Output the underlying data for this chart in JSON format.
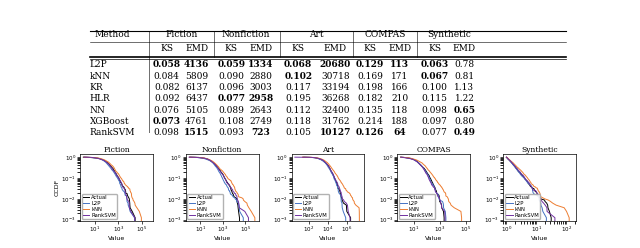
{
  "table": {
    "methods": [
      "L2P",
      "kNN",
      "KR",
      "HLR",
      "NN",
      "XGBoost",
      "RankSVM"
    ],
    "datasets": [
      "Fiction",
      "Nonfiction",
      "Art",
      "COMPAS",
      "Synthetic"
    ],
    "data": [
      [
        "0.058",
        "4136",
        "0.059",
        "1334",
        "0.068",
        "20680",
        "0.129",
        "113",
        "0.063",
        "0.78"
      ],
      [
        "0.084",
        "5809",
        "0.090",
        "2880",
        "0.102",
        "30718",
        "0.169",
        "171",
        "0.067",
        "0.81"
      ],
      [
        "0.082",
        "6137",
        "0.096",
        "3003",
        "0.117",
        "33194",
        "0.198",
        "166",
        "0.100",
        "1.13"
      ],
      [
        "0.092",
        "6437",
        "0.077",
        "2958",
        "0.195",
        "36268",
        "0.182",
        "210",
        "0.115",
        "1.22"
      ],
      [
        "0.076",
        "5105",
        "0.089",
        "2643",
        "0.112",
        "32400",
        "0.135",
        "118",
        "0.098",
        "0.65"
      ],
      [
        "0.073",
        "4761",
        "0.108",
        "2749",
        "0.118",
        "31762",
        "0.214",
        "188",
        "0.097",
        "0.80"
      ],
      [
        "0.098",
        "1515",
        "0.093",
        "723",
        "0.105",
        "10127",
        "0.126",
        "64",
        "0.077",
        "0.49"
      ]
    ],
    "bold": [
      [
        true,
        true,
        true,
        true,
        true,
        true,
        true,
        true,
        true,
        false
      ],
      [
        false,
        false,
        false,
        false,
        true,
        false,
        false,
        false,
        true,
        false
      ],
      [
        false,
        false,
        false,
        false,
        false,
        false,
        false,
        false,
        false,
        false
      ],
      [
        false,
        false,
        true,
        true,
        false,
        false,
        false,
        false,
        false,
        false
      ],
      [
        false,
        false,
        false,
        false,
        false,
        false,
        false,
        false,
        false,
        true
      ],
      [
        true,
        false,
        false,
        false,
        false,
        false,
        false,
        false,
        false,
        false
      ],
      [
        false,
        true,
        false,
        true,
        false,
        true,
        true,
        true,
        false,
        true
      ]
    ]
  },
  "plots": {
    "titles": [
      "Fiction",
      "Nonfiction",
      "Art",
      "COMPAS",
      "Synthetic"
    ],
    "legend_labels": [
      "Actual",
      "L2P",
      "kNN",
      "RankSVM"
    ],
    "line_colors": {
      "Actual": "#000000",
      "L2P": "#4472C4",
      "kNN": "#ED7D31",
      "RankSVM": "#7030A0"
    },
    "ylabel": "CCDF",
    "xlabel": "Value"
  }
}
